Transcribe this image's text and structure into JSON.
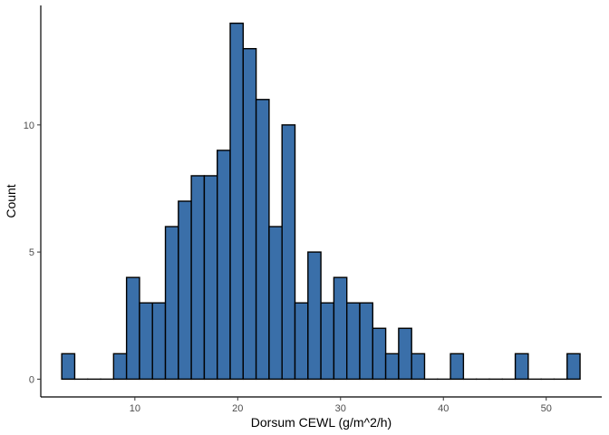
{
  "chart_data": {
    "type": "bar",
    "subtype": "histogram",
    "title": "",
    "xlabel": "Dorsum CEWL (g/m^2/h)",
    "ylabel": "Count",
    "x_bins": {
      "start": 2.89,
      "width": 1.26,
      "counts": [
        1,
        0,
        0,
        0,
        1,
        4,
        3,
        3,
        6,
        7,
        8,
        8,
        9,
        14,
        13,
        11,
        6,
        10,
        3,
        5,
        3,
        4,
        3,
        3,
        2,
        1,
        2,
        1,
        0,
        0,
        1,
        0,
        0,
        0,
        0,
        1,
        0,
        0,
        0,
        1
      ]
    },
    "xlim": [
      0.85,
      55.4
    ],
    "ylim": [
      -0.7,
      14.7
    ],
    "x_ticks": [
      10,
      20,
      30,
      40,
      50
    ],
    "y_ticks": [
      0,
      5,
      10
    ],
    "grid": false,
    "legend": "none",
    "colors": {
      "bar_fill": "#3a6fa9",
      "bar_stroke": "#000000",
      "axis": "#000000"
    }
  }
}
